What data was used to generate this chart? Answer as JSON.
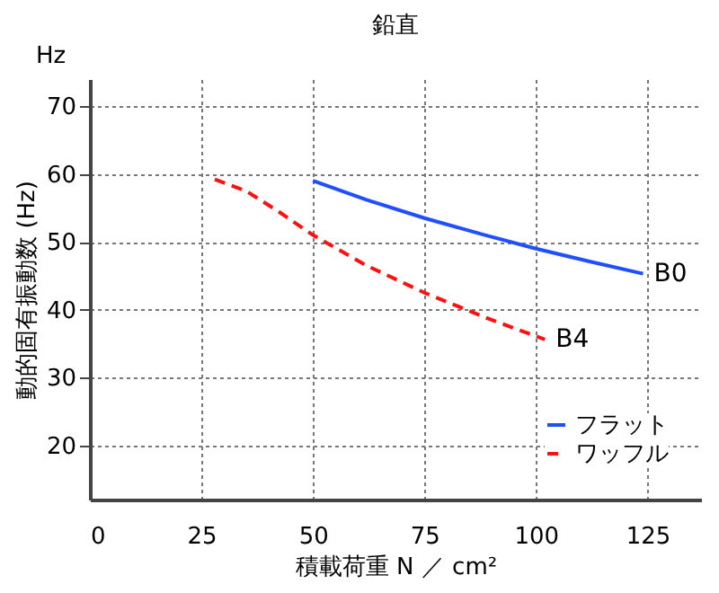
{
  "chart_data": {
    "type": "line",
    "title": "鉛直",
    "xlabel": "積載荷重 N ／ cm²",
    "ylabel": "動的固有振動数 (Hz)",
    "xlim": [
      0,
      137
    ],
    "ylim": [
      12,
      74
    ],
    "xticks": [
      0,
      25,
      50,
      75,
      100,
      125
    ],
    "yticks": [
      20,
      30,
      40,
      50,
      60,
      70
    ],
    "grid": true,
    "legend": "bottom right",
    "marker": "none",
    "series": [
      {
        "name": "フラット",
        "color": "#1f4fff",
        "line_style": "solid",
        "x": [
          50,
          62,
          75,
          88,
          100,
          112,
          124
        ],
        "values": [
          59,
          56.2,
          53.5,
          51.1,
          49,
          47.1,
          45.3
        ]
      },
      {
        "name": "ワッフル",
        "color": "#ff1010",
        "line_style": "dashed",
        "x": [
          28,
          35,
          42,
          50,
          62,
          75,
          90,
          102
        ],
        "values": [
          59.2,
          57.5,
          54.6,
          51,
          46.5,
          42.5,
          38.5,
          35.6
        ]
      }
    ],
    "annotations": [
      "Hz",
      {
        "text": "B0",
        "x": 124,
        "y": 45.3
      },
      {
        "text": "B4",
        "x": 102,
        "y": 35.6
      }
    ]
  }
}
